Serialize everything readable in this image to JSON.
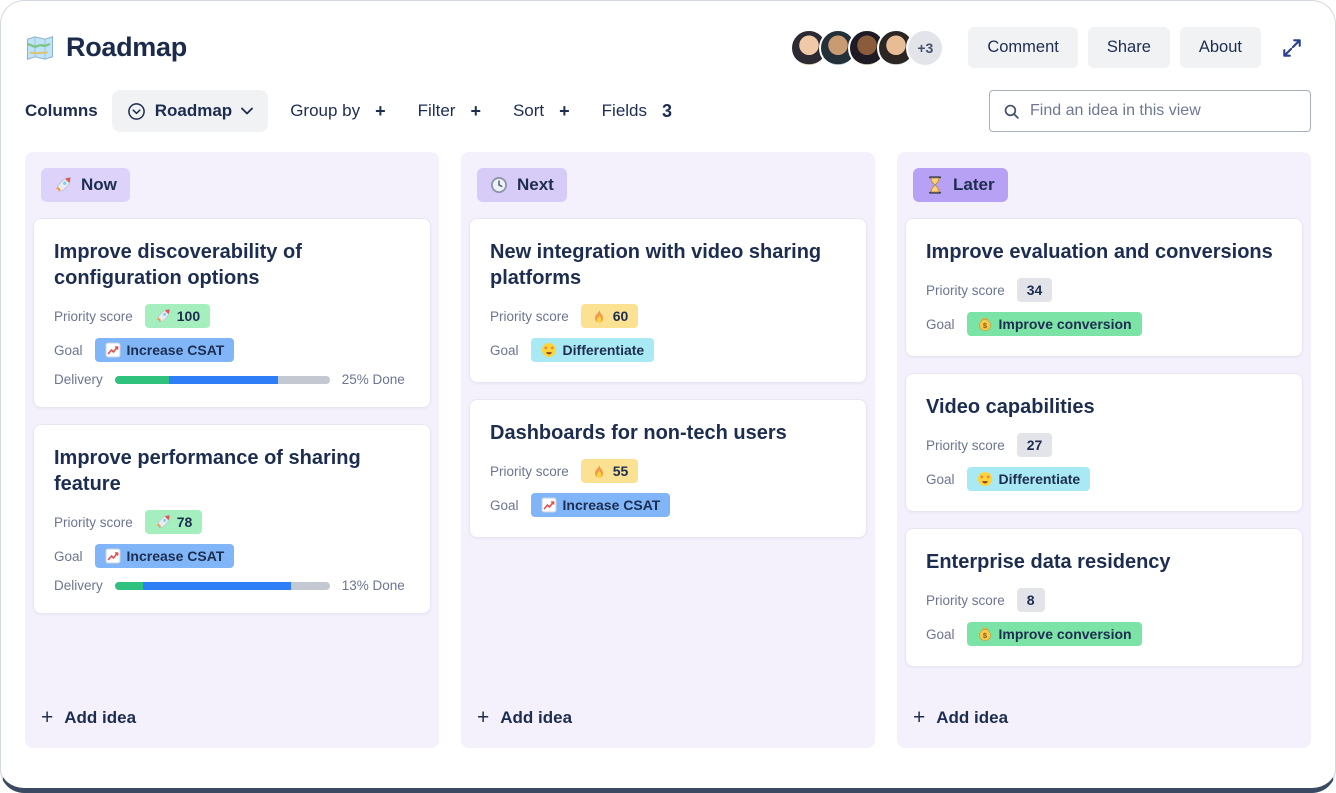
{
  "header": {
    "app_icon": "map-icon",
    "title": "Roadmap",
    "avatars": [
      {
        "hair": "#2e2a33",
        "skin": "#f0c9a8",
        "bg": "#cdb9a8"
      },
      {
        "hair": "#23303a",
        "skin": "#c99b72",
        "bg": "#9fb4c4"
      },
      {
        "hair": "#1f1b24",
        "skin": "#8a5c3c",
        "bg": "#c2b5a3"
      },
      {
        "hair": "#2b2623",
        "skin": "#e8bd96",
        "bg": "#b9c7cf"
      }
    ],
    "avatar_overflow": "+3",
    "buttons": [
      {
        "label": "Comment"
      },
      {
        "label": "Share"
      },
      {
        "label": "About"
      }
    ],
    "expand_icon": "expand-icon"
  },
  "toolbar": {
    "columns_label": "Columns",
    "view_dropdown": {
      "icon": "circle-chevron-icon",
      "label": "Roadmap",
      "caret": "chevron-down-icon"
    },
    "controls": [
      {
        "label": "Group by",
        "suffix": "+"
      },
      {
        "label": "Filter",
        "suffix": "+"
      },
      {
        "label": "Sort",
        "suffix": "+"
      },
      {
        "label": "Fields",
        "suffix": "3"
      }
    ],
    "search": {
      "icon": "search-icon",
      "placeholder": "Find an idea in this view"
    }
  },
  "board": {
    "labels": {
      "priority": "Priority score",
      "goal": "Goal",
      "delivery": "Delivery"
    },
    "add_idea": {
      "plus": "+",
      "label": "Add idea"
    },
    "columns": [
      {
        "name": "Now",
        "icon": "rocket-icon",
        "badge_bg": "#ddd2f9",
        "cards": [
          {
            "title": "Improve discoverability of configuration options",
            "priority": {
              "icon": "rocket-icon",
              "value": "100",
              "bg": "#a5efbf"
            },
            "goal": {
              "icon": "chart-up-icon",
              "label": "Increase CSAT",
              "bg": "#80b6f8"
            },
            "delivery": {
              "done": 25,
              "in_progress": 51,
              "label": "25% Done"
            }
          },
          {
            "title": "Improve performance of sharing feature",
            "priority": {
              "icon": "rocket-icon",
              "value": "78",
              "bg": "#a5efbf"
            },
            "goal": {
              "icon": "chart-up-icon",
              "label": "Increase CSAT",
              "bg": "#80b6f8"
            },
            "delivery": {
              "done": 13,
              "in_progress": 69,
              "label": "13% Done"
            }
          }
        ]
      },
      {
        "name": "Next",
        "icon": "clock-icon",
        "badge_bg": "#d7cbf8",
        "cards": [
          {
            "title": "New integration with video sharing platforms",
            "priority": {
              "icon": "fire-icon",
              "value": "60",
              "bg": "#fbe292"
            },
            "goal": {
              "icon": "star-face-icon",
              "label": "Differentiate",
              "bg": "#a9e9f3"
            }
          },
          {
            "title": "Dashboards for non-tech users",
            "priority": {
              "icon": "fire-icon",
              "value": "55",
              "bg": "#fbe292"
            },
            "goal": {
              "icon": "chart-up-icon",
              "label": "Increase CSAT",
              "bg": "#80b6f8"
            }
          }
        ]
      },
      {
        "name": "Later",
        "icon": "hourglass-icon",
        "badge_bg": "#b7a1f4",
        "cards": [
          {
            "title": "Improve evaluation and conversions",
            "priority": {
              "icon": "",
              "value": "34",
              "bg": "#e2e4e9"
            },
            "goal": {
              "icon": "money-bag-icon",
              "label": "Improve conversion",
              "bg": "#7ce3a7"
            }
          },
          {
            "title": "Video capabilities",
            "priority": {
              "icon": "",
              "value": "27",
              "bg": "#e2e4e9"
            },
            "goal": {
              "icon": "star-face-icon",
              "label": "Differentiate",
              "bg": "#a9e9f3"
            }
          },
          {
            "title": "Enterprise data residency",
            "priority": {
              "icon": "",
              "value": "8",
              "bg": "#e2e4e9"
            },
            "goal": {
              "icon": "money-bag-icon",
              "label": "Improve conversion",
              "bg": "#7ce3a7"
            }
          }
        ]
      }
    ]
  }
}
